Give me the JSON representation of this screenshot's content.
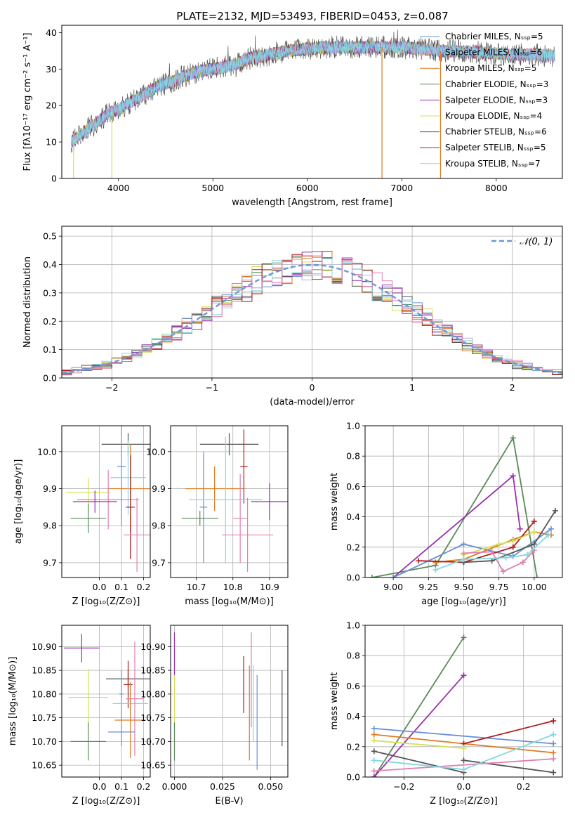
{
  "figure": {
    "title": "PLATE=2132, MJD=53493, FIBERID=0453, z=0.087"
  },
  "colors": {
    "chabrier_miles": "#6a8fd6",
    "salpeter_miles": "#b9a6df",
    "kroupa_miles": "#e07a22",
    "chabrier_elodie": "#5a8a5a",
    "salpeter_elodie": "#9a2fb0",
    "kroupa_elodie": "#d4e157",
    "chabrier_stelib": "#555555",
    "salpeter_stelib": "#b01c1c",
    "kroupa_stelib": "#80d8e0",
    "extra_pink": "#e07fb0",
    "normal_curve": "#6d98d8"
  },
  "chart_data": [
    {
      "id": "spectrum",
      "type": "line",
      "xlabel": "wavelength [Angstrom, rest frame]",
      "ylabel": "Flux [fλ10⁻¹⁷ erg cm⁻² s⁻¹ A⁻¹]",
      "xlim": [
        3400,
        8700
      ],
      "ylim": [
        0,
        42
      ],
      "xticks": [
        4000,
        5000,
        6000,
        7000,
        8000
      ],
      "yticks": [
        0,
        10,
        20,
        30,
        40
      ],
      "legend": [
        "Chabrier MILES, Nₛₛₚ=5",
        "Salpeter MILES, Nₛₛₚ=6",
        "Kroupa MILES, Nₛₛₚ=5",
        "Chabrier ELODIE, Nₛₛₚ=3",
        "Salpeter ELODIE, Nₛₛₚ=3",
        "Kroupa ELODIE, Nₛₛₚ=4",
        "Chabrier STELIB, Nₛₛₚ=6",
        "Salpeter STELIB, Nₛₛₚ=5",
        "Kroupa STELIB, Nₛₛₚ=7"
      ],
      "continuum": [
        [
          3500,
          10
        ],
        [
          3700,
          14
        ],
        [
          3900,
          18
        ],
        [
          4000,
          19
        ],
        [
          4200,
          22
        ],
        [
          4400,
          25
        ],
        [
          4600,
          27
        ],
        [
          4800,
          29
        ],
        [
          5000,
          30
        ],
        [
          5200,
          31
        ],
        [
          5400,
          33
        ],
        [
          5600,
          34
        ],
        [
          5800,
          35
        ],
        [
          6000,
          35.5
        ],
        [
          6200,
          36
        ],
        [
          6400,
          36
        ],
        [
          6600,
          36
        ],
        [
          6800,
          36
        ],
        [
          7000,
          36
        ],
        [
          7200,
          35.5
        ],
        [
          7400,
          35
        ],
        [
          7600,
          34.8
        ],
        [
          7800,
          34.6
        ],
        [
          8000,
          34.2
        ],
        [
          8200,
          34
        ],
        [
          8400,
          34
        ],
        [
          8600,
          33.5
        ]
      ],
      "dips": [
        {
          "x": 3525,
          "y": 0
        },
        {
          "x": 3930,
          "y": 0
        },
        {
          "x": 6790,
          "y": 0
        },
        {
          "x": 7410,
          "y": 0
        }
      ]
    },
    {
      "id": "residual_hist",
      "type": "histogram",
      "xlabel": "(data-model)/error",
      "ylabel": "Normed distribution",
      "xlim": [
        -2.5,
        2.5
      ],
      "ylim": [
        0,
        0.535
      ],
      "xticks": [
        -2,
        -1,
        0,
        1,
        2
      ],
      "yticks": [
        0.0,
        0.1,
        0.2,
        0.3,
        0.4,
        0.5
      ],
      "legend": [
        "𝒩(0, 1)"
      ],
      "bin_width": 0.1
    },
    {
      "id": "age_vs_Z",
      "type": "errorbar",
      "xlabel": "Z [log₁₀(Z/Z⊙)]",
      "ylabel": "age  [log₁₀(age/yr)]",
      "xlim": [
        -0.17,
        0.23
      ],
      "ylim": [
        9.66,
        10.07
      ],
      "xticks": [
        0.0,
        0.1,
        0.2
      ],
      "yticks": [
        9.7,
        9.8,
        9.9,
        10.0
      ],
      "points": [
        {
          "x": 0.13,
          "y": 10.02,
          "xerr": 0.12,
          "yerr": 0.03,
          "c": "chabrier_stelib"
        },
        {
          "x": 0.1,
          "y": 9.96,
          "xerr": 0.02,
          "yerr": 0.16,
          "c": "chabrier_miles"
        },
        {
          "x": 0.14,
          "y": 9.9,
          "xerr": 0.1,
          "yerr": 0.12,
          "c": "kroupa_miles"
        },
        {
          "x": 0.13,
          "y": 9.93,
          "xerr": 0.08,
          "yerr": 0.1,
          "c": "kroupa_stelib"
        },
        {
          "x": -0.05,
          "y": 9.89,
          "xerr": 0.1,
          "yerr": 0.04,
          "c": "kroupa_elodie"
        },
        {
          "x": 0.04,
          "y": 9.87,
          "xerr": 0.14,
          "yerr": 0.08,
          "c": "extra_pink"
        },
        {
          "x": -0.02,
          "y": 9.865,
          "xerr": 0.1,
          "yerr": 0.03,
          "c": "salpeter_elodie"
        },
        {
          "x": -0.05,
          "y": 9.82,
          "xerr": 0.08,
          "yerr": 0.04,
          "c": "chabrier_elodie"
        },
        {
          "x": 0.14,
          "y": 9.85,
          "xerr": 0.02,
          "yerr": 0.14,
          "c": "salpeter_stelib"
        },
        {
          "x": 0.17,
          "y": 9.775,
          "xerr": 0.06,
          "yerr": 0.1,
          "c": "extra_pink"
        }
      ]
    },
    {
      "id": "age_vs_mass",
      "type": "errorbar",
      "xlabel": "mass [log₁₀(M/M⊙)]",
      "ylabel": "",
      "xlim": [
        10.63,
        10.95
      ],
      "ylim": [
        9.66,
        10.07
      ],
      "xticks": [
        10.7,
        10.8,
        10.9
      ],
      "yticks": [
        9.7,
        9.8,
        9.9,
        10.0
      ],
      "points": [
        {
          "x": 10.79,
          "y": 10.02,
          "xerr": 0.08,
          "yerr": 0.03,
          "c": "chabrier_stelib"
        },
        {
          "x": 10.83,
          "y": 9.96,
          "xerr": 0.01,
          "yerr": 0.1,
          "c": "salpeter_stelib"
        },
        {
          "x": 10.72,
          "y": 9.85,
          "xerr": 0.01,
          "yerr": 0.15,
          "c": "chabrier_miles"
        },
        {
          "x": 10.75,
          "y": 9.9,
          "xerr": 0.08,
          "yerr": 0.06,
          "c": "kroupa_miles"
        },
        {
          "x": 10.78,
          "y": 9.87,
          "xerr": 0.1,
          "yerr": 0.17,
          "c": "kroupa_stelib"
        },
        {
          "x": 10.71,
          "y": 9.82,
          "xerr": 0.05,
          "yerr": 0.02,
          "c": "chabrier_elodie"
        },
        {
          "x": 10.9,
          "y": 9.865,
          "xerr": 0.05,
          "yerr": 0.05,
          "c": "salpeter_elodie"
        },
        {
          "x": 10.82,
          "y": 9.82,
          "xerr": 0.02,
          "yerr": 0.12,
          "c": "extra_pink"
        },
        {
          "x": 10.84,
          "y": 9.775,
          "xerr": 0.07,
          "yerr": 0.1,
          "c": "extra_pink"
        }
      ]
    },
    {
      "id": "weight_vs_age",
      "type": "line",
      "xlabel": "age  [log₁₀(age/yr)]",
      "ylabel": "mass weight",
      "xlim": [
        8.8,
        10.2
      ],
      "ylim": [
        0,
        1
      ],
      "xticks": [
        9.0,
        9.25,
        9.5,
        9.75,
        10.0
      ],
      "xticklabels": [
        "9.00",
        "9.25",
        "9.50",
        "9.75",
        "10.00"
      ],
      "yticks": [
        0.0,
        0.2,
        0.4,
        0.6,
        0.8,
        1.0
      ],
      "series": [
        {
          "c": "chabrier_elodie",
          "x": [
            8.85,
            9.3,
            9.85,
            10.02
          ],
          "y": [
            0.0,
            0.08,
            0.92,
            0.0
          ]
        },
        {
          "c": "salpeter_elodie",
          "x": [
            9.0,
            9.85,
            9.9
          ],
          "y": [
            0.0,
            0.67,
            0.32
          ]
        },
        {
          "c": "chabrier_miles",
          "x": [
            9.0,
            9.5,
            9.85,
            10.12
          ],
          "y": [
            0.0,
            0.22,
            0.14,
            0.32
          ]
        },
        {
          "c": "kroupa_miles",
          "x": [
            9.3,
            9.5,
            9.85,
            10.0,
            10.12
          ],
          "y": [
            0.1,
            0.12,
            0.25,
            0.3,
            0.28
          ]
        },
        {
          "c": "salpeter_stelib",
          "x": [
            9.18,
            9.5,
            9.85,
            10.0
          ],
          "y": [
            0.11,
            0.1,
            0.2,
            0.37
          ]
        },
        {
          "c": "chabrier_stelib",
          "x": [
            9.5,
            9.7,
            10.0,
            10.15
          ],
          "y": [
            0.1,
            0.11,
            0.22,
            0.44
          ]
        },
        {
          "c": "kroupa_elodie",
          "x": [
            9.5,
            9.75,
            9.85,
            10.0
          ],
          "y": [
            0.15,
            0.22,
            0.24,
            0.3
          ]
        },
        {
          "c": "extra_pink",
          "x": [
            9.5,
            9.7,
            9.78,
            9.92,
            10.0
          ],
          "y": [
            0.16,
            0.17,
            0.04,
            0.1,
            0.18
          ]
        },
        {
          "c": "kroupa_stelib",
          "x": [
            9.3,
            9.5,
            9.8,
            9.95,
            10.1
          ],
          "y": [
            0.05,
            0.12,
            0.13,
            0.15,
            0.28
          ]
        }
      ]
    },
    {
      "id": "mass_vs_Z",
      "type": "errorbar",
      "xlabel": "Z [log₁₀(Z/Z⊙)]",
      "ylabel": "mass [log₁₀(M/M⊙)]",
      "xlim": [
        -0.17,
        0.23
      ],
      "ylim": [
        10.625,
        10.945
      ],
      "xticks": [
        0.0,
        0.1,
        0.2
      ],
      "yticks": [
        10.65,
        10.7,
        10.75,
        10.8,
        10.85,
        10.9
      ],
      "points": [
        {
          "x": -0.08,
          "y": 10.897,
          "xerr": 0.08,
          "yerr": 0.03,
          "c": "salpeter_elodie"
        },
        {
          "x": 0.13,
          "y": 10.832,
          "xerr": 0.1,
          "yerr": 0.02,
          "c": "chabrier_stelib"
        },
        {
          "x": 0.13,
          "y": 10.82,
          "xerr": 0.02,
          "yerr": 0.05,
          "c": "salpeter_stelib"
        },
        {
          "x": 0.1,
          "y": 10.8,
          "xerr": 0.01,
          "yerr": 0.05,
          "c": "chabrier_miles"
        },
        {
          "x": -0.05,
          "y": 10.793,
          "xerr": 0.09,
          "yerr": 0.06,
          "c": "kroupa_elodie"
        },
        {
          "x": 0.14,
          "y": 10.78,
          "xerr": 0.08,
          "yerr": 0.04,
          "c": "kroupa_stelib"
        },
        {
          "x": 0.16,
          "y": 10.79,
          "xerr": 0.04,
          "yerr": 0.12,
          "c": "extra_pink"
        },
        {
          "x": 0.14,
          "y": 10.745,
          "xerr": 0.07,
          "yerr": 0.08,
          "c": "kroupa_miles"
        },
        {
          "x": 0.1,
          "y": 10.72,
          "xerr": 0.06,
          "yerr": 0.03,
          "c": "chabrier_miles"
        },
        {
          "x": -0.05,
          "y": 10.7,
          "xerr": 0.08,
          "yerr": 0.04,
          "c": "chabrier_elodie"
        }
      ]
    },
    {
      "id": "mass_vs_ebv",
      "type": "errorbar",
      "xlabel": "E(B-V)",
      "ylabel": "",
      "xlim": [
        -0.002,
        0.059
      ],
      "ylim": [
        10.625,
        10.945
      ],
      "xticks": [
        0.0,
        0.025,
        0.05
      ],
      "xticklabels": [
        "0.000",
        "0.025",
        "0.050"
      ],
      "yticks": [
        10.65,
        10.7,
        10.75,
        10.8,
        10.85,
        10.9
      ],
      "points": [
        {
          "x": 0.0,
          "y": 10.88,
          "xerr": 0.0,
          "yerr": 0.05,
          "c": "salpeter_elodie"
        },
        {
          "x": 0.0,
          "y": 10.78,
          "xerr": 0.0,
          "yerr": 0.06,
          "c": "kroupa_elodie"
        },
        {
          "x": 0.0,
          "y": 10.7,
          "xerr": 0.0,
          "yerr": 0.04,
          "c": "chabrier_elodie"
        },
        {
          "x": 0.036,
          "y": 10.82,
          "xerr": 0.0,
          "yerr": 0.06,
          "c": "salpeter_stelib"
        },
        {
          "x": 0.04,
          "y": 10.83,
          "xerr": 0.0,
          "yerr": 0.1,
          "c": "extra_pink"
        },
        {
          "x": 0.039,
          "y": 10.76,
          "xerr": 0.0,
          "yerr": 0.1,
          "c": "kroupa_miles"
        },
        {
          "x": 0.043,
          "y": 10.74,
          "xerr": 0.0,
          "yerr": 0.1,
          "c": "chabrier_miles"
        },
        {
          "x": 0.041,
          "y": 10.78,
          "xerr": 0.0,
          "yerr": 0.08,
          "c": "kroupa_stelib"
        },
        {
          "x": 0.056,
          "y": 10.77,
          "xerr": 0.0,
          "yerr": 0.08,
          "c": "chabrier_stelib"
        }
      ]
    },
    {
      "id": "weight_vs_Z",
      "type": "line",
      "xlabel": "Z [log₁₀(Z/Z⊙)]",
      "ylabel": "mass weight",
      "xlim": [
        -0.33,
        0.33
      ],
      "ylim": [
        0,
        1
      ],
      "xticks": [
        -0.2,
        0.0,
        0.2
      ],
      "xticklabels": [
        "−0.2",
        "0.0",
        "0.2"
      ],
      "yticks": [
        0.0,
        0.2,
        0.4,
        0.6,
        0.8,
        1.0
      ],
      "series": [
        {
          "c": "chabrier_elodie",
          "x": [
            -0.3,
            0.0
          ],
          "y": [
            0.0,
            0.92
          ]
        },
        {
          "c": "salpeter_elodie",
          "x": [
            -0.3,
            0.0
          ],
          "y": [
            0.0,
            0.67
          ]
        },
        {
          "c": "chabrier_miles",
          "x": [
            -0.3,
            0.3
          ],
          "y": [
            0.32,
            0.22
          ]
        },
        {
          "c": "kroupa_miles",
          "x": [
            -0.3,
            0.0,
            0.3
          ],
          "y": [
            0.28,
            0.22,
            0.16
          ]
        },
        {
          "c": "salpeter_stelib",
          "x": [
            0.0,
            0.3
          ],
          "y": [
            0.22,
            0.37
          ]
        },
        {
          "c": "chabrier_stelib",
          "x": [
            -0.3,
            0.0
          ],
          "y": [
            0.17,
            0.03
          ]
        },
        {
          "c": "chabrier_stelib",
          "x": [
            0.0,
            0.3
          ],
          "y": [
            0.11,
            0.03
          ]
        },
        {
          "c": "kroupa_elodie",
          "x": [
            -0.3,
            0.0
          ],
          "y": [
            0.24,
            0.19
          ]
        },
        {
          "c": "extra_pink",
          "x": [
            -0.3,
            0.3
          ],
          "y": [
            0.04,
            0.12
          ]
        },
        {
          "c": "kroupa_stelib",
          "x": [
            -0.3,
            0.0,
            0.3
          ],
          "y": [
            0.11,
            0.05,
            0.28
          ]
        }
      ]
    }
  ]
}
